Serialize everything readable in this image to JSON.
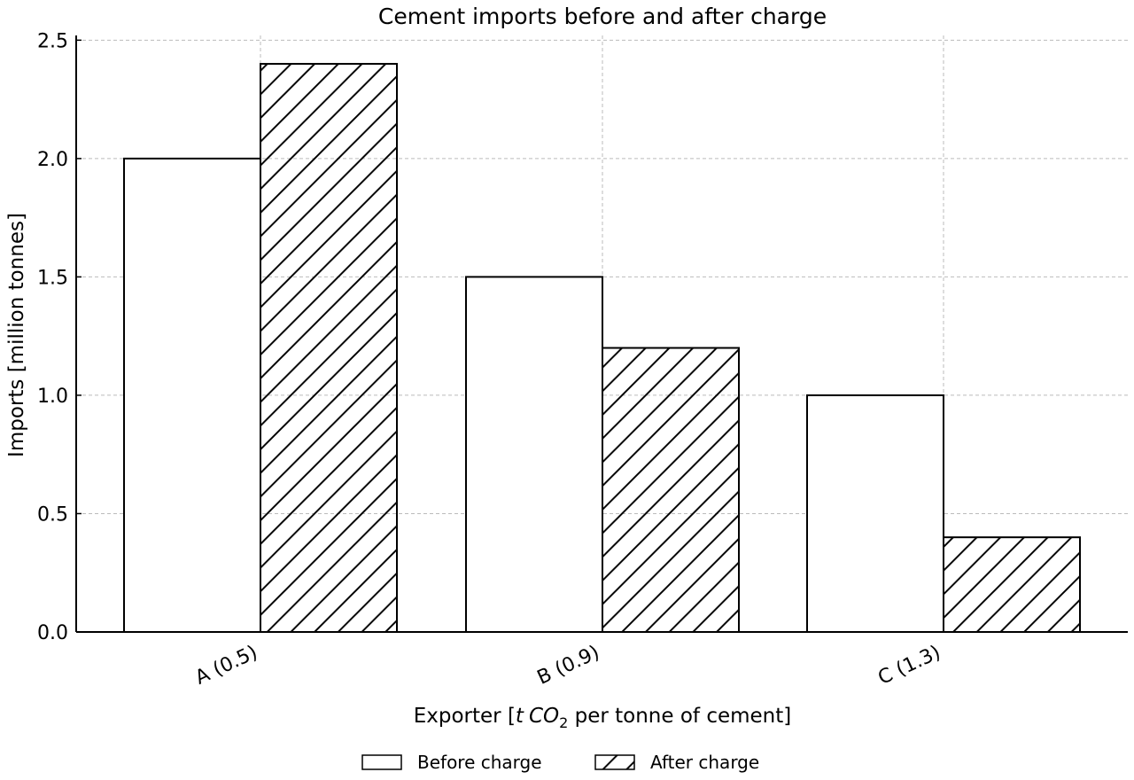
{
  "chart_data": {
    "type": "bar",
    "title": "Cement imports before and after charge",
    "xlabel": {
      "prefix": "Exporter [",
      "italic_t": "t",
      "italic_co": "CO",
      "subscript": "2",
      "suffix": " per tonne of cement]"
    },
    "ylabel": "Imports [million tonnes]",
    "categories": [
      "A (0.5)",
      "B (0.9)",
      "C (1.3)"
    ],
    "series": [
      {
        "name": "Before charge",
        "values": [
          2.0,
          1.5,
          1.0
        ],
        "pattern": "none"
      },
      {
        "name": "After charge",
        "values": [
          2.4,
          1.2,
          0.4
        ],
        "pattern": "diagonal-hatch"
      }
    ],
    "ylim": [
      0,
      2.52
    ],
    "yticks": [
      "0.0",
      "0.5",
      "1.0",
      "1.5",
      "2.0",
      "2.5"
    ],
    "grid": true,
    "legend_position": "bottom-center",
    "colors": {
      "fill": "#ffffff",
      "edge": "#000000",
      "grid": "#bbbbbb"
    }
  }
}
